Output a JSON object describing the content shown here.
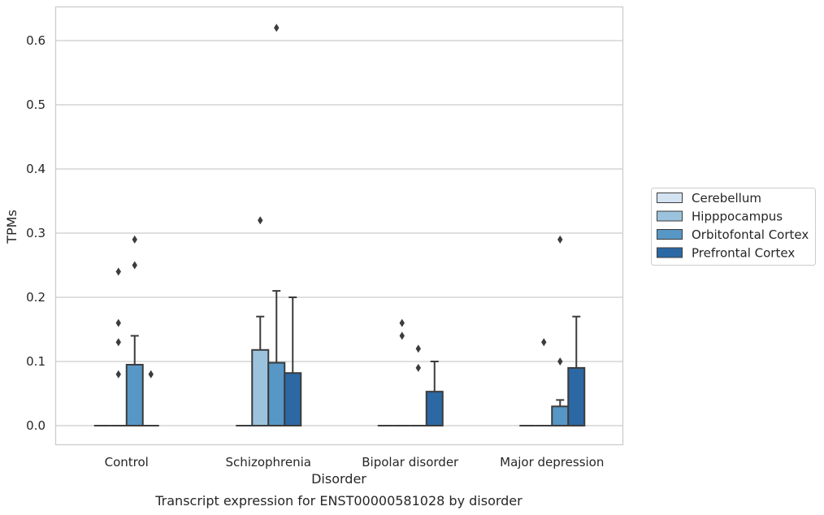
{
  "chart_data": {
    "type": "box",
    "caption": "Transcript expression for ENST00000581028 by disorder",
    "xlabel": "Disorder",
    "ylabel": "TPMs",
    "ylim": [
      -0.03,
      0.655
    ],
    "yticks": [
      0.0,
      0.1,
      0.2,
      0.3,
      0.4,
      0.5,
      0.6
    ],
    "ytick_labels": [
      "0.0",
      "0.1",
      "0.2",
      "0.3",
      "0.4",
      "0.5",
      "0.6"
    ],
    "grid": "horizontal",
    "legend_position": "right",
    "categories": [
      "Control",
      "Schizophrenia",
      "Bipolar disorder",
      "Major depression"
    ],
    "series": [
      {
        "name": "Cerebellum",
        "color": "#d4e3f2",
        "boxes": [
          {
            "q1": 0.0,
            "median": 0.0,
            "q3": 0.0,
            "whisker_low": 0.0,
            "whisker_high": 0.0,
            "outliers": []
          },
          {
            "q1": 0.0,
            "median": 0.0,
            "q3": 0.0,
            "whisker_low": 0.0,
            "whisker_high": 0.0,
            "outliers": []
          },
          {
            "q1": 0.0,
            "median": 0.0,
            "q3": 0.0,
            "whisker_low": 0.0,
            "whisker_high": 0.0,
            "outliers": []
          },
          {
            "q1": 0.0,
            "median": 0.0,
            "q3": 0.0,
            "whisker_low": 0.0,
            "whisker_high": 0.0,
            "outliers": []
          }
        ]
      },
      {
        "name": "Hipppocampus",
        "color": "#9cc3dd",
        "boxes": [
          {
            "q1": 0.0,
            "median": 0.0,
            "q3": 0.0,
            "whisker_low": 0.0,
            "whisker_high": 0.0,
            "outliers": [
              0.08
            ]
          },
          {
            "q1": 0.0,
            "median": 0.0,
            "q3": 0.118,
            "whisker_low": 0.0,
            "whisker_high": 0.17,
            "outliers": [
              0.32
            ]
          },
          {
            "q1": 0.0,
            "median": 0.0,
            "q3": 0.0,
            "whisker_low": 0.0,
            "whisker_high": 0.0,
            "outliers": [
              0.14,
              0.16
            ]
          },
          {
            "q1": 0.0,
            "median": 0.0,
            "q3": 0.0,
            "whisker_low": 0.0,
            "whisker_high": 0.0,
            "outliers": []
          }
        ]
      },
      {
        "name": "Orbitofontal Cortex",
        "color": "#5797c5",
        "boxes": [
          {
            "q1": 0.0,
            "median": 0.0,
            "q3": 0.095,
            "whisker_low": 0.0,
            "whisker_high": 0.14,
            "outliers": [
              0.25,
              0.29
            ]
          },
          {
            "q1": 0.0,
            "median": 0.0,
            "q3": 0.098,
            "whisker_low": 0.0,
            "whisker_high": 0.21,
            "outliers": [
              0.62
            ]
          },
          {
            "q1": 0.0,
            "median": 0.0,
            "q3": 0.0,
            "whisker_low": 0.0,
            "whisker_high": 0.0,
            "outliers": [
              0.09,
              0.12
            ]
          },
          {
            "q1": 0.0,
            "median": 0.0,
            "q3": 0.03,
            "whisker_low": 0.0,
            "whisker_high": 0.04,
            "outliers": [
              0.1,
              0.29
            ]
          }
        ]
      },
      {
        "name": "Prefrontal Cortex",
        "color": "#2b68a4",
        "boxes": [
          {
            "q1": 0.0,
            "median": 0.0,
            "q3": 0.0,
            "whisker_low": 0.0,
            "whisker_high": 0.0,
            "outliers": [
              0.08
            ]
          },
          {
            "q1": 0.0,
            "median": 0.0,
            "q3": 0.082,
            "whisker_low": 0.0,
            "whisker_high": 0.2,
            "outliers": []
          },
          {
            "q1": 0.0,
            "median": 0.0,
            "q3": 0.053,
            "whisker_low": 0.0,
            "whisker_high": 0.1,
            "outliers": []
          },
          {
            "q1": 0.0,
            "median": 0.0,
            "q3": 0.09,
            "whisker_low": 0.0,
            "whisker_high": 0.17,
            "outliers": []
          }
        ]
      }
    ],
    "extra_outliers": [
      {
        "category": 0,
        "series": 1,
        "values": [
          0.13,
          0.16,
          0.24
        ]
      },
      {
        "category": 3,
        "series": 1,
        "values": [
          0.13
        ]
      }
    ]
  }
}
